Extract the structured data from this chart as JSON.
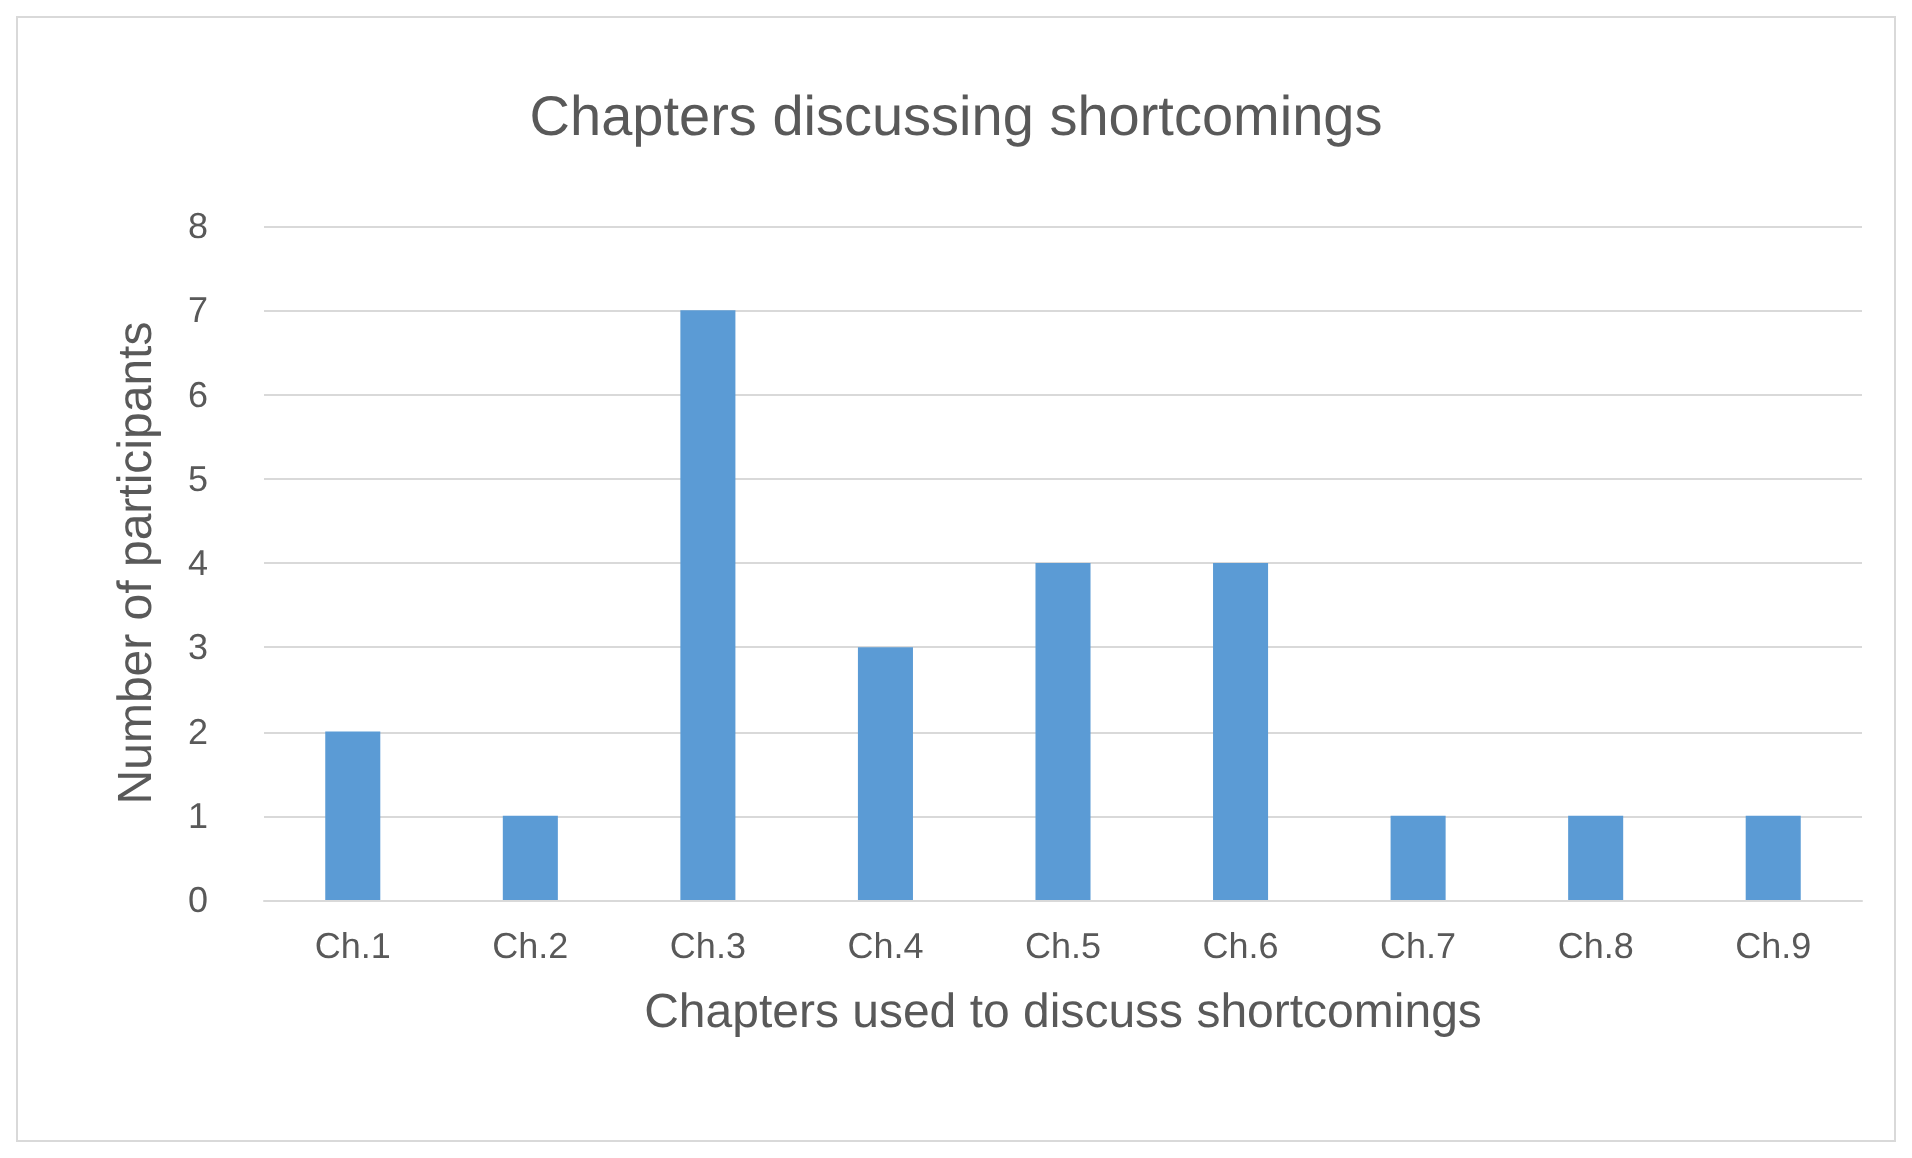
{
  "chart_data": {
    "type": "bar",
    "title": "Chapters discussing shortcomings",
    "xlabel": "Chapters used to discuss shortcomings",
    "ylabel": "Number of participants",
    "categories": [
      "Ch.1",
      "Ch.2",
      "Ch.3",
      "Ch.4",
      "Ch.5",
      "Ch.6",
      "Ch.7",
      "Ch.8",
      "Ch.9"
    ],
    "values": [
      2,
      1,
      7,
      3,
      4,
      4,
      1,
      1,
      1
    ],
    "color": "#5b9bd5",
    "ylim": [
      0,
      8
    ],
    "yticks": [
      0,
      1,
      2,
      3,
      4,
      5,
      6,
      7,
      8
    ],
    "grid": "y"
  }
}
